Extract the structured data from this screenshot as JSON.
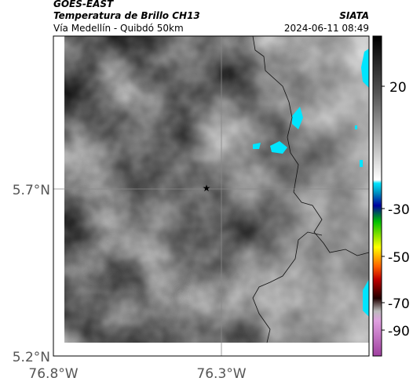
{
  "header": {
    "source": "GOES-EAST",
    "product": "Temperatura de Brillo CH13",
    "route": "Vía Medellín - Quibdó 50km",
    "agency": "SIATA",
    "timestamp": "2024-06-11 08:49"
  },
  "map": {
    "lat_labels": [
      "5.7°N",
      "5.2°N"
    ],
    "lon_labels": [
      "76.8°W",
      "76.3°W"
    ]
  },
  "colorbar": {
    "ticks": [
      20,
      -30,
      -50,
      -70,
      -90
    ]
  }
}
